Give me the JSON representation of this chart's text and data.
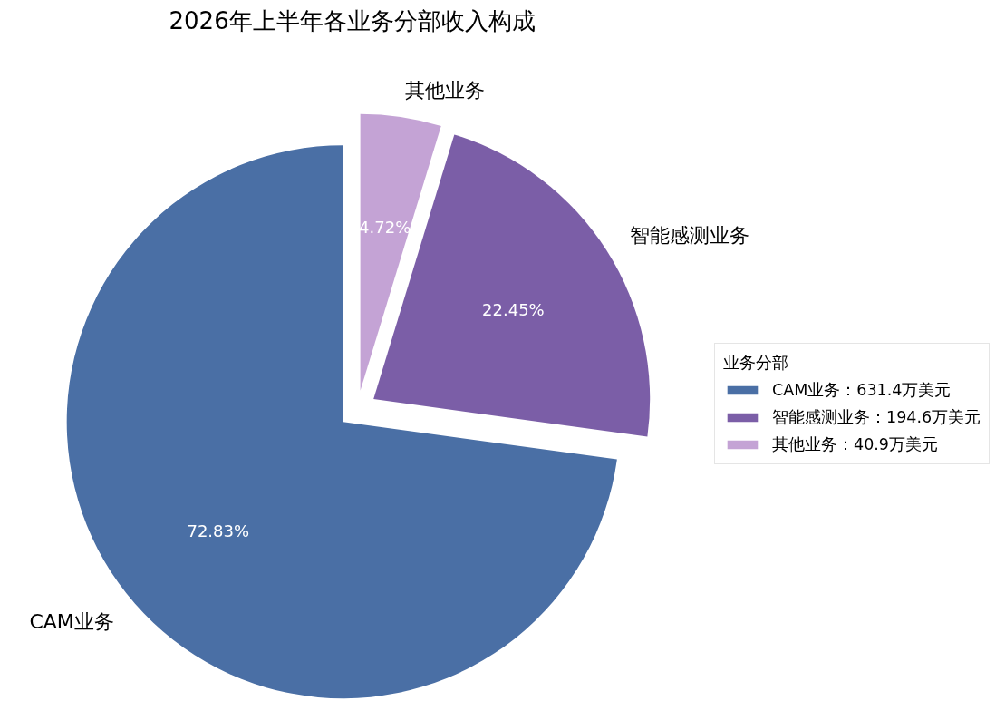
{
  "chart_data": {
    "type": "pie",
    "title": "2026年上半年各业务分部收入构成",
    "categories": [
      "CAM业务：631.4万美元",
      "智能感测业务：194.6万美元",
      "其他业务：40.9万美元"
    ],
    "values": [
      72.83,
      22.45,
      4.72
    ],
    "colors": [
      "#4a6fa5",
      "#7b5ea7",
      "#c4a3d5"
    ],
    "value_labels": [
      "72.83%",
      "22.45%",
      "4.72%"
    ],
    "legend": "right",
    "legend_title": "业务分部",
    "annotations": [
      "CAM业务",
      "智能感测业务",
      "其他业务"
    ]
  }
}
